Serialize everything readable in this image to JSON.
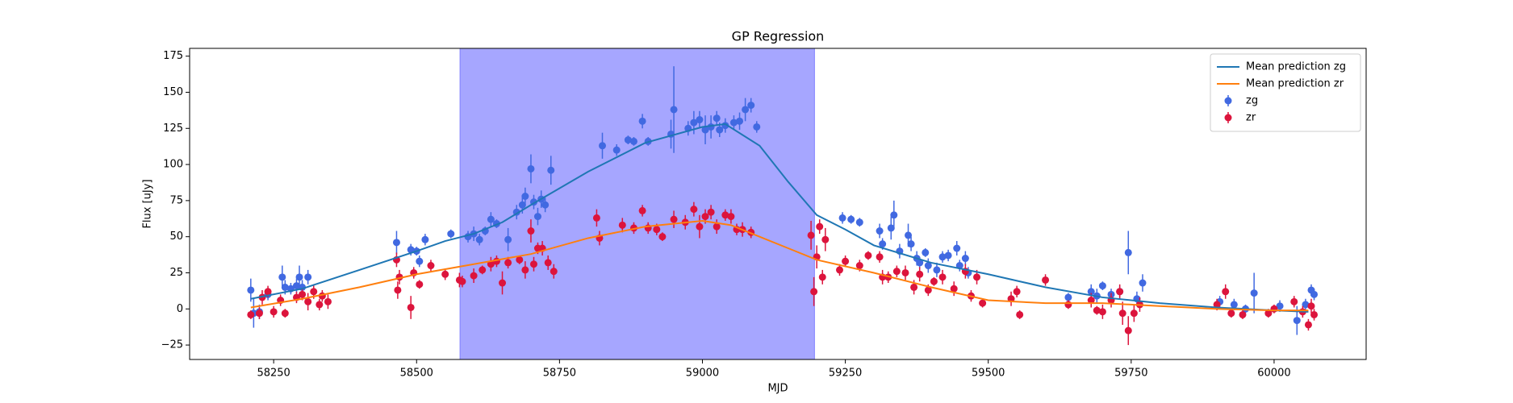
{
  "chart_data": {
    "type": "scatter",
    "title": "GP Regression",
    "x_label": "MJD",
    "y_label": "Flux [uJy]",
    "xlim": [
      58103,
      60161
    ],
    "ylim": [
      -35,
      180.4
    ],
    "xticks": [
      58250,
      58500,
      58750,
      59000,
      59250,
      59500,
      59750,
      60000
    ],
    "yticks": [
      {
        "value": -25,
        "label": "−25"
      },
      0,
      25,
      50,
      75,
      100,
      125,
      150,
      175
    ],
    "legend": "upper right",
    "span": [
      58576,
      59196
    ],
    "span_color": "#a6a6ff",
    "lines": [
      {
        "name": "Mean prediction zg",
        "color": "#1f77b4",
        "x": [
          58210,
          58300,
          58400,
          58500,
          58550,
          58600,
          58650,
          58700,
          58800,
          58900,
          59000,
          59040,
          59100,
          59150,
          59200,
          59250,
          59300,
          59400,
          59500,
          59600,
          59700,
          59800,
          59900,
          60000,
          60060
        ],
        "values": [
          7,
          14,
          27,
          40,
          47,
          52,
          60,
          72,
          95,
          115,
          126,
          128,
          113,
          88,
          65,
          55,
          44,
          32,
          24,
          15,
          8,
          4,
          1,
          -1,
          -2
        ]
      },
      {
        "name": "Mean prediction zr",
        "color": "#ff7f0e",
        "x": [
          58210,
          58300,
          58400,
          58500,
          58600,
          58700,
          58800,
          58900,
          59000,
          59050,
          59100,
          59150,
          59200,
          59300,
          59400,
          59500,
          59600,
          59700,
          59800,
          59900,
          60000,
          60060
        ],
        "values": [
          1,
          7,
          15,
          24,
          31,
          38,
          49,
          57,
          61,
          58,
          50,
          42,
          34,
          25,
          15,
          6,
          4,
          4,
          2,
          0,
          -1,
          -1
        ]
      }
    ],
    "series": [
      {
        "name": "zg",
        "color": "#4169e1",
        "x": [
          58210,
          58215,
          58225,
          58240,
          58265,
          58270,
          58280,
          58290,
          58295,
          58300,
          58310,
          58465,
          58490,
          58500,
          58505,
          58515,
          58560,
          58590,
          58600,
          58610,
          58620,
          58630,
          58640,
          58660,
          58675,
          58685,
          58690,
          58700,
          58705,
          58712,
          58718,
          58725,
          58735,
          58825,
          58850,
          58870,
          58880,
          58895,
          58905,
          58945,
          58950,
          58975,
          58985,
          58995,
          59005,
          59015,
          59025,
          59030,
          59040,
          59055,
          59065,
          59075,
          59085,
          59095,
          59245,
          59260,
          59275,
          59310,
          59315,
          59330,
          59335,
          59345,
          59360,
          59365,
          59375,
          59380,
          59390,
          59395,
          59410,
          59420,
          59430,
          59445,
          59450,
          59460,
          59465,
          59640,
          59680,
          59690,
          59700,
          59715,
          59730,
          59745,
          59760,
          59770,
          59905,
          59930,
          59950,
          59965,
          60010,
          60040,
          60055,
          60065,
          60070
        ],
        "values": [
          13,
          -3,
          -2,
          10,
          22,
          15,
          14,
          16,
          22,
          15,
          22,
          46,
          41,
          40,
          33,
          48,
          52,
          50,
          52,
          48,
          54,
          62,
          59,
          48,
          67,
          72,
          78,
          97,
          74,
          64,
          76,
          72,
          96,
          113,
          110,
          117,
          116,
          130,
          116,
          121,
          138,
          125,
          129,
          131,
          124,
          126,
          132,
          124,
          127,
          129,
          130,
          138,
          141,
          126,
          63,
          62,
          60,
          54,
          45,
          56,
          65,
          40,
          51,
          45,
          35,
          32,
          39,
          30,
          27,
          36,
          37,
          42,
          30,
          35,
          25,
          8,
          12,
          9,
          16,
          10,
          12,
          39,
          7,
          18,
          5,
          3,
          0,
          11,
          2,
          -8,
          3,
          13,
          10
        ],
        "errors": [
          8,
          10,
          5,
          4,
          8,
          5,
          4,
          5,
          8,
          5,
          5,
          8,
          4,
          3,
          4,
          4,
          3,
          4,
          5,
          4,
          3,
          5,
          3,
          8,
          5,
          6,
          6,
          10,
          5,
          6,
          6,
          5,
          10,
          9,
          4,
          3,
          3,
          5,
          3,
          10,
          30,
          5,
          8,
          6,
          10,
          8,
          5,
          5,
          5,
          5,
          6,
          8,
          5,
          4,
          4,
          3,
          3,
          5,
          4,
          8,
          10,
          5,
          8,
          5,
          5,
          4,
          3,
          5,
          5,
          4,
          4,
          5,
          4,
          5,
          4,
          3,
          5,
          5,
          3,
          4,
          4,
          15,
          5,
          6,
          4,
          4,
          3,
          14,
          4,
          10,
          4,
          4,
          4
        ]
      },
      {
        "name": "zr",
        "color": "#dc143c",
        "x": [
          58210,
          58225,
          58230,
          58240,
          58250,
          58262,
          58270,
          58290,
          58300,
          58310,
          58320,
          58330,
          58335,
          58345,
          58465,
          58467,
          58470,
          58490,
          58495,
          58505,
          58525,
          58550,
          58575,
          58580,
          58600,
          58615,
          58630,
          58640,
          58650,
          58660,
          58680,
          58690,
          58700,
          58705,
          58712,
          58720,
          58730,
          58740,
          58815,
          58820,
          58860,
          58880,
          58895,
          58905,
          58920,
          58930,
          58950,
          58970,
          58985,
          58995,
          59005,
          59015,
          59025,
          59040,
          59050,
          59060,
          59070,
          59085,
          59190,
          59195,
          59200,
          59205,
          59210,
          59215,
          59240,
          59250,
          59275,
          59290,
          59310,
          59315,
          59325,
          59340,
          59355,
          59370,
          59380,
          59395,
          59405,
          59420,
          59440,
          59460,
          59470,
          59480,
          59490,
          59540,
          59550,
          59555,
          59600,
          59640,
          59680,
          59690,
          59700,
          59715,
          59730,
          59735,
          59745,
          59755,
          59765,
          59900,
          59915,
          59925,
          59945,
          59990,
          60000,
          60035,
          60050,
          60060,
          60065,
          60070
        ],
        "values": [
          -4,
          -3,
          8,
          12,
          -2,
          6,
          -3,
          8,
          10,
          5,
          12,
          3,
          9,
          5,
          34,
          13,
          22,
          1,
          25,
          17,
          30,
          24,
          20,
          19,
          23,
          27,
          31,
          33,
          18,
          32,
          34,
          27,
          54,
          31,
          42,
          42,
          32,
          26,
          63,
          49,
          58,
          56,
          68,
          56,
          55,
          50,
          62,
          60,
          69,
          57,
          64,
          67,
          57,
          65,
          64,
          55,
          55,
          53,
          51,
          12,
          36,
          57,
          22,
          48,
          27,
          33,
          30,
          37,
          36,
          22,
          22,
          26,
          25,
          15,
          24,
          13,
          19,
          22,
          14,
          26,
          9,
          22,
          4,
          7,
          12,
          -4,
          20,
          3,
          6,
          -1,
          -2,
          6,
          12,
          -3,
          -15,
          -3,
          3,
          3,
          12,
          -3,
          -4,
          -3,
          0,
          5,
          -2,
          -11,
          2,
          -4
        ],
        "errors": [
          3,
          4,
          5,
          4,
          4,
          4,
          3,
          4,
          4,
          6,
          5,
          4,
          4,
          5,
          5,
          6,
          5,
          8,
          4,
          3,
          4,
          4,
          5,
          4,
          5,
          3,
          5,
          4,
          8,
          4,
          3,
          6,
          8,
          5,
          4,
          5,
          5,
          5,
          6,
          5,
          5,
          4,
          4,
          4,
          4,
          3,
          6,
          5,
          5,
          8,
          5,
          5,
          5,
          4,
          5,
          4,
          5,
          4,
          10,
          10,
          8,
          5,
          5,
          8,
          4,
          4,
          4,
          3,
          4,
          5,
          4,
          4,
          5,
          5,
          5,
          4,
          3,
          5,
          5,
          5,
          4,
          5,
          3,
          5,
          4,
          3,
          4,
          3,
          5,
          3,
          5,
          5,
          5,
          8,
          10,
          6,
          5,
          4,
          5,
          3,
          3,
          3,
          3,
          4,
          4,
          4,
          5,
          4
        ]
      }
    ]
  }
}
